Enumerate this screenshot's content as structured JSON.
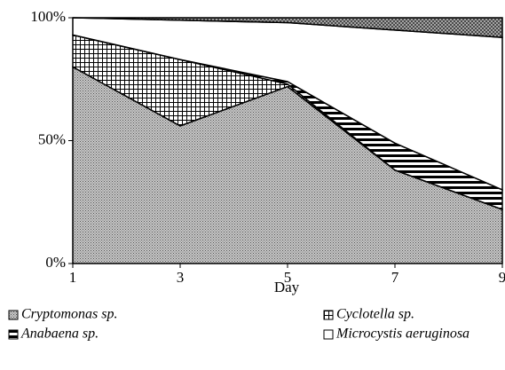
{
  "chart_data": {
    "type": "stacked_area",
    "x": [
      1,
      3,
      5,
      7,
      9
    ],
    "xlim": [
      1,
      9
    ],
    "xticks": [
      1,
      3,
      5,
      7,
      9
    ],
    "ylim": [
      0,
      100
    ],
    "yticks": [
      {
        "value": 0,
        "label": "0%"
      },
      {
        "value": 50,
        "label": "50%"
      },
      {
        "value": 100,
        "label": "100%"
      }
    ],
    "xlabel": "Day",
    "legend": "bottom",
    "series": [
      {
        "name": "Cryptomonas sp.",
        "color": "#a0a0a0",
        "pattern": "dots",
        "values": [
          80,
          56,
          72,
          38,
          22
        ]
      },
      {
        "name": "Cyclotella sp.",
        "color": "#000000",
        "pattern": "grid",
        "values": [
          13,
          27,
          1,
          0,
          0
        ]
      },
      {
        "name": "Anabaena sp.",
        "color": "#000000",
        "pattern": "hstripes",
        "values": [
          0,
          0,
          1,
          11,
          8
        ]
      },
      {
        "name": "Microcystis aeruginosa",
        "color": "#ffffff",
        "pattern": "none",
        "values": [
          7,
          16,
          24,
          46,
          62
        ]
      },
      {
        "color": "#000000",
        "pattern": "crosshatch",
        "values": [
          0,
          1,
          2,
          5,
          8
        ]
      }
    ]
  }
}
